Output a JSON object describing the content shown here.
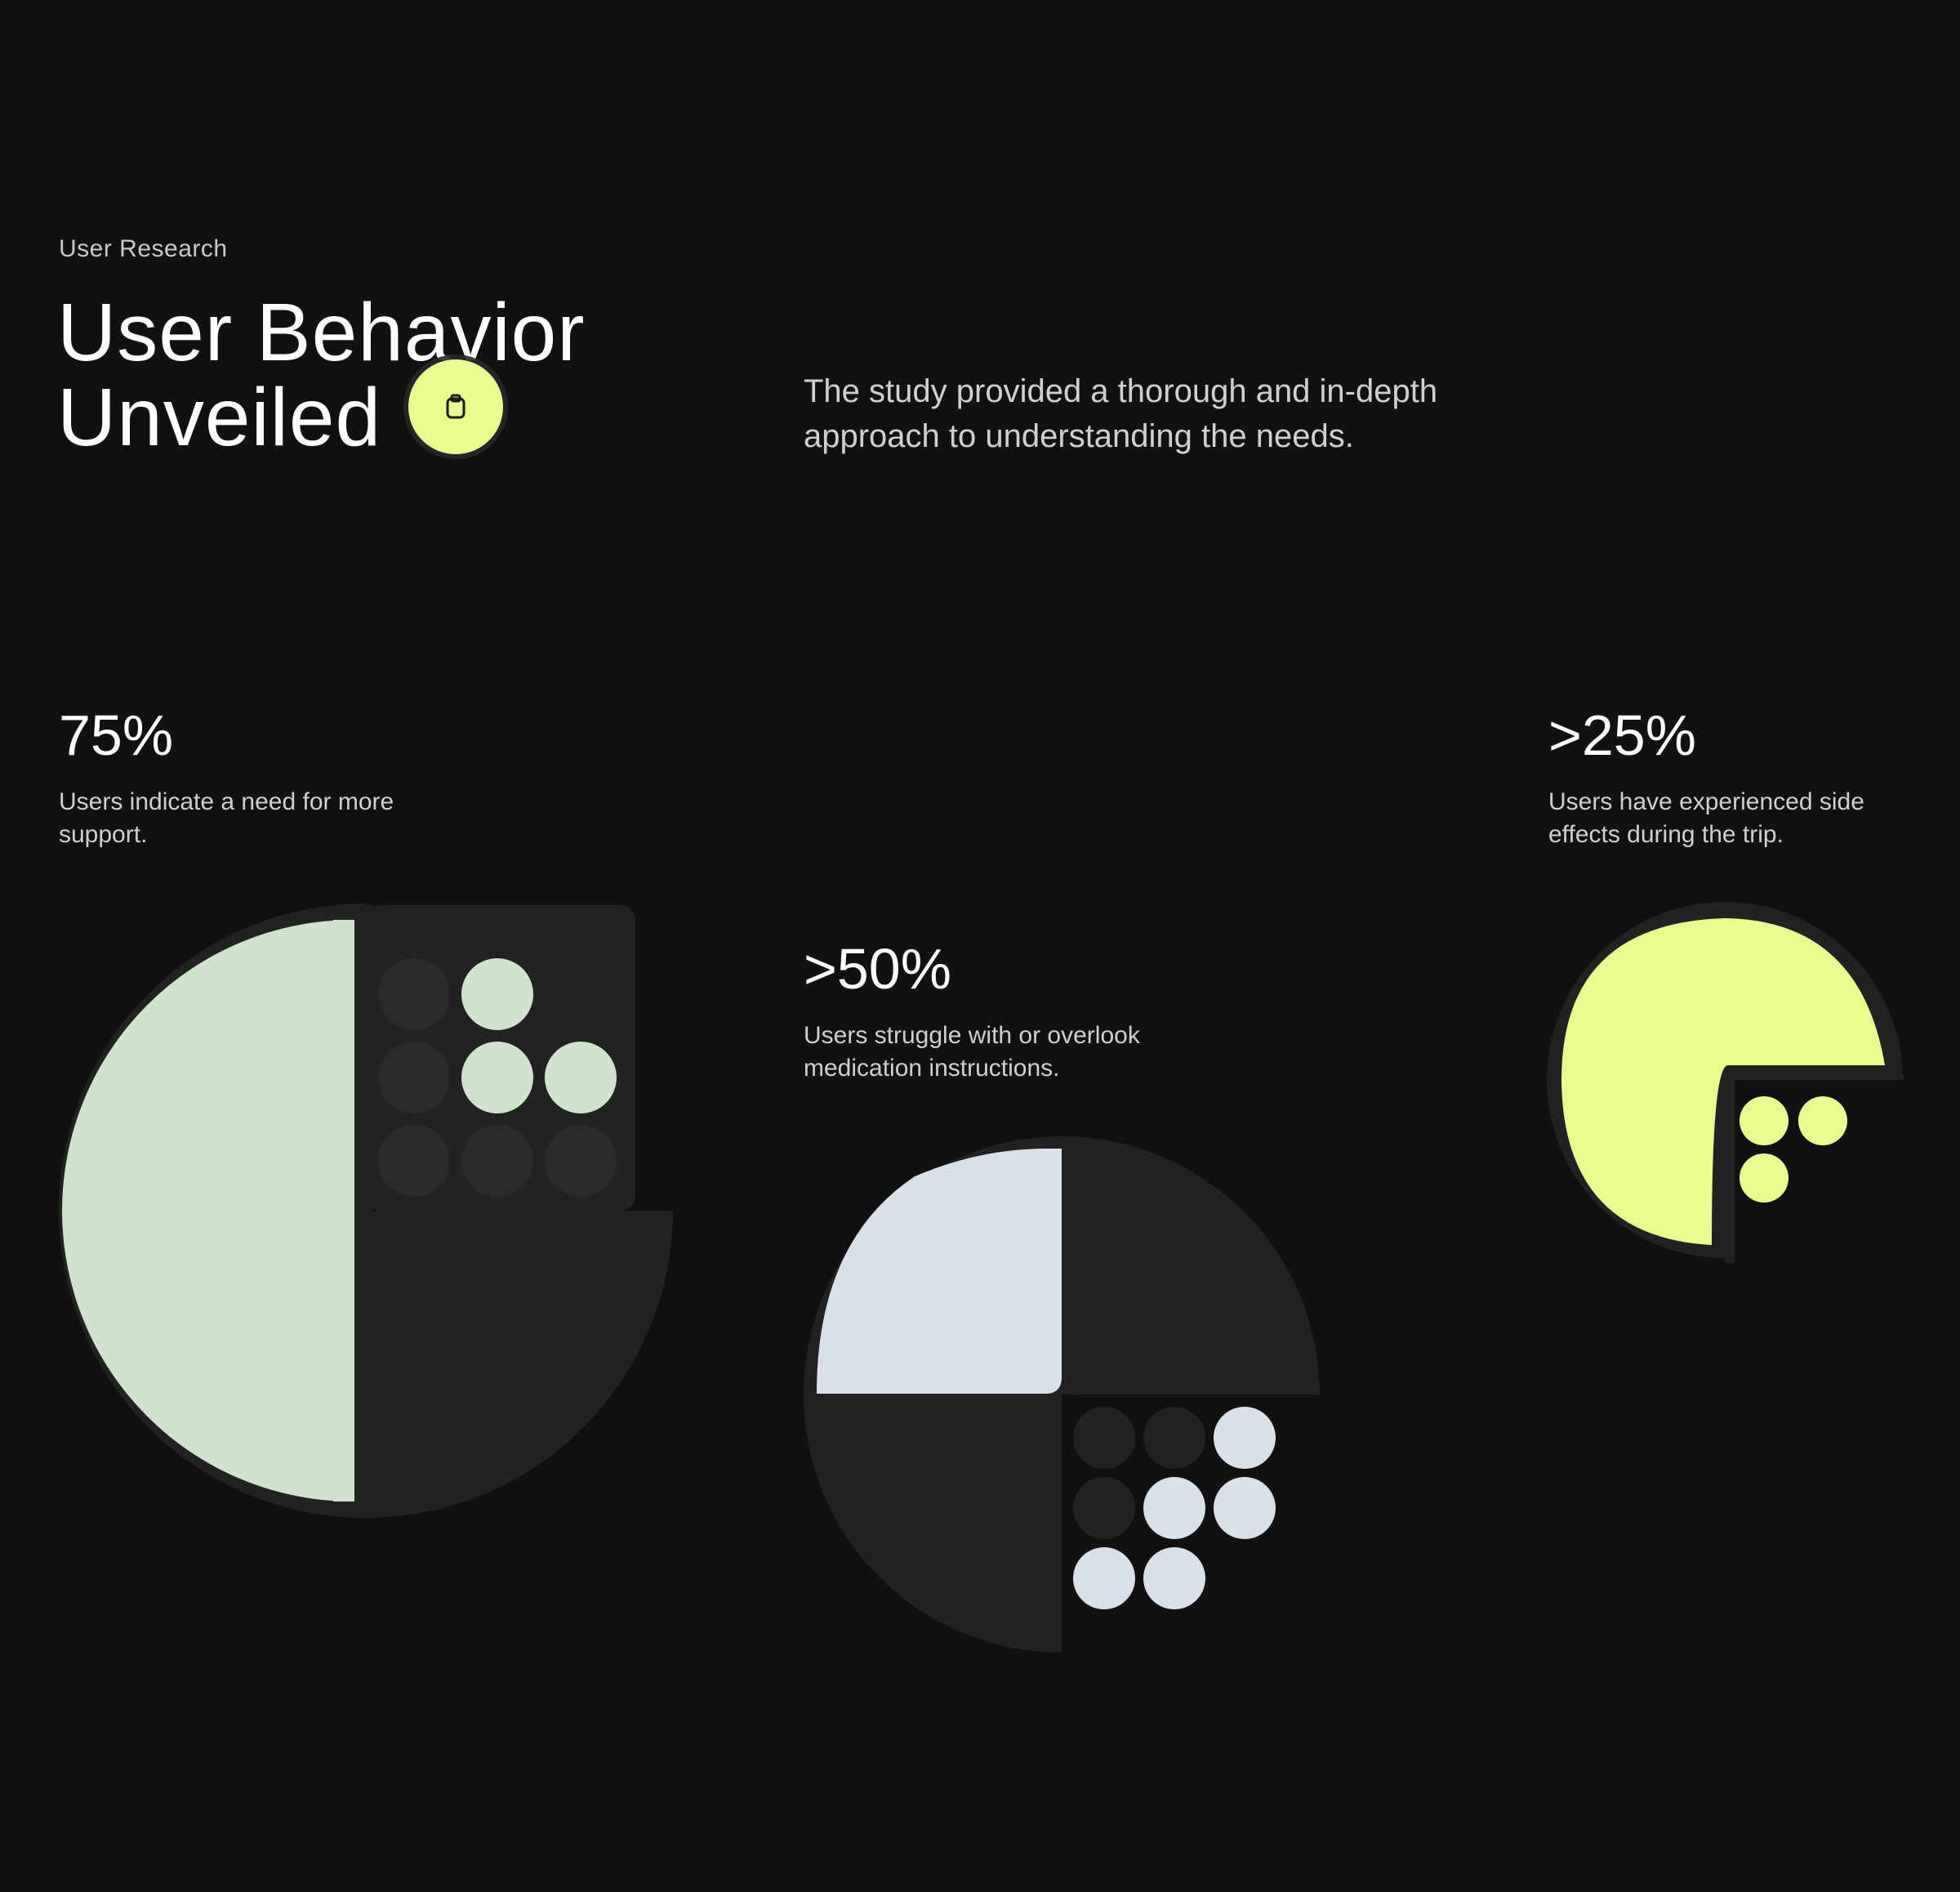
{
  "header": {
    "eyebrow": "User Research",
    "title_line1": "User Behavior",
    "title_line2": "Unveiled",
    "lead": "The study provided a thorough and in-depth approach to understanding the needs."
  },
  "stats": [
    {
      "value": "75%",
      "description": "Users indicate a need for more support.",
      "fraction": 0.75,
      "color": "#d0e3cd"
    },
    {
      "value": ">50%",
      "description": "Users struggle with or overlook medication instructions.",
      "fraction": 0.5,
      "color": "#d9e0e8"
    },
    {
      "value": ">25%",
      "description": "Users have experienced side effects during the trip.",
      "fraction": 0.25,
      "color": "#ebfc8e"
    }
  ],
  "colors": {
    "background": "#111111",
    "track": "#222222",
    "accent": "#ebfc8e"
  },
  "cursor_icon": "clipboard-icon"
}
